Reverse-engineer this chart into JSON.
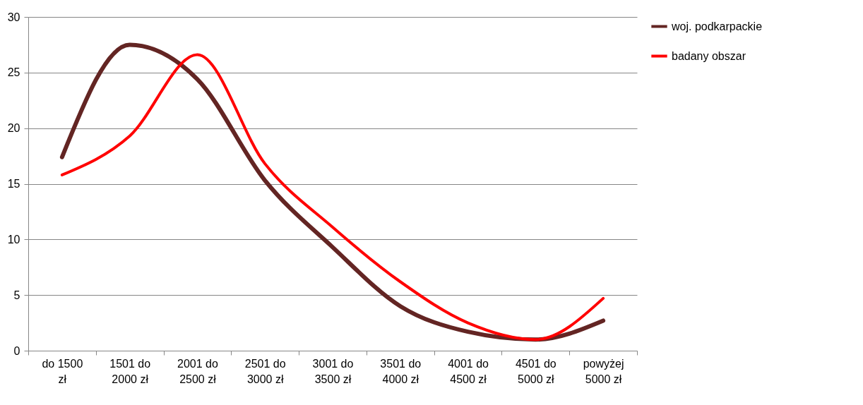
{
  "chart_data": {
    "type": "line",
    "categories": [
      "do 1500 zł",
      "1501 do 2000 zł",
      "2001 do 2500 zł",
      "2501 do 3000 zł",
      "3001 do 3500 zł",
      "3501 do 4000 zł",
      "4001 do 4500 zł",
      "4501 do 5000 zł",
      "powyżej 5000 zł"
    ],
    "series": [
      {
        "name": "woj. podkarpackie",
        "color": "#632523",
        "values": [
          17.4,
          27.5,
          24.4,
          15.3,
          9.3,
          4,
          1.7,
          1,
          2.7
        ]
      },
      {
        "name": "badany obszar",
        "color": "#ff0000",
        "values": [
          15.8,
          19.3,
          26.6,
          16.8,
          11.1,
          6.2,
          2.5,
          1,
          4.7
        ]
      }
    ],
    "ylim": [
      0,
      30
    ],
    "yticks": [
      0,
      5,
      10,
      15,
      20,
      25,
      30
    ],
    "grid": "y",
    "legend": "right",
    "marker": "none",
    "line_style": "solid"
  }
}
